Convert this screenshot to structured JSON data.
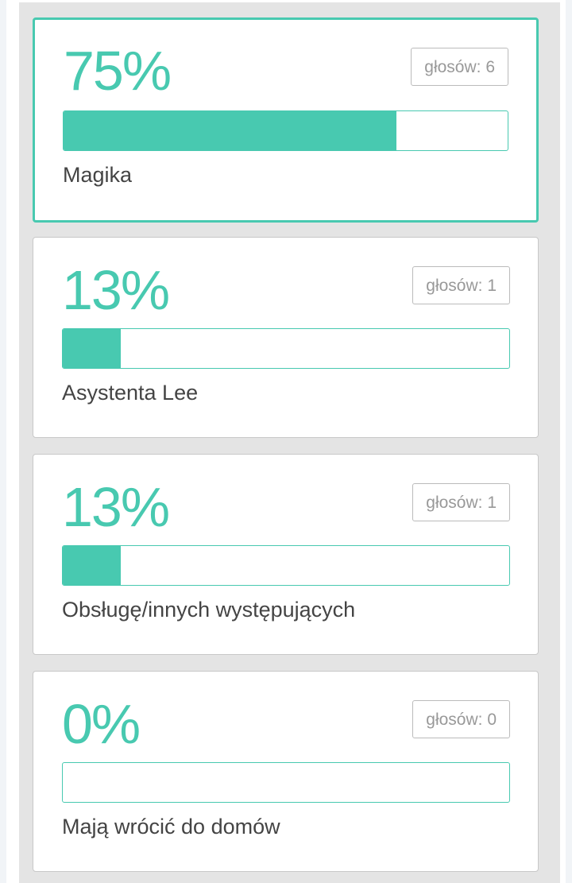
{
  "accent_color": "#48c9b0",
  "options": [
    {
      "percent_label": "75%",
      "percent": 75,
      "votes_label": "głosów: 6",
      "name": "Magika",
      "selected": true
    },
    {
      "percent_label": "13%",
      "percent": 13,
      "votes_label": "głosów: 1",
      "name": "Asystenta Lee",
      "selected": false
    },
    {
      "percent_label": "13%",
      "percent": 13,
      "votes_label": "głosów: 1",
      "name": "Obsługę/innych występujących",
      "selected": false
    },
    {
      "percent_label": "0%",
      "percent": 0,
      "votes_label": "głosów: 0",
      "name": "Mają wrócić do domów",
      "selected": false
    }
  ]
}
